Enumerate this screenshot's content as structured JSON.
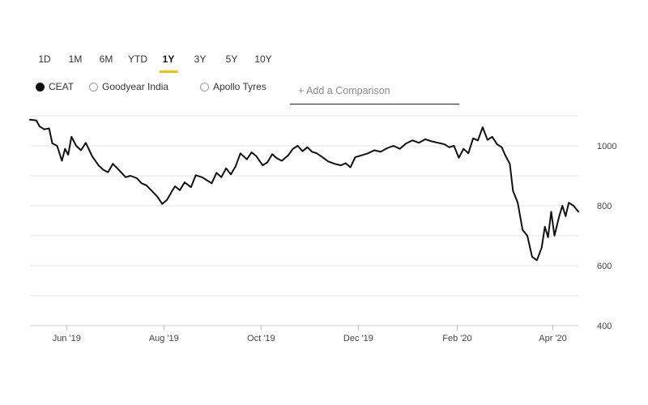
{
  "range_tabs": [
    {
      "label": "1D",
      "active": false
    },
    {
      "label": "1M",
      "active": false
    },
    {
      "label": "6M",
      "active": false
    },
    {
      "label": "YTD",
      "active": false
    },
    {
      "label": "1Y",
      "active": true
    },
    {
      "label": "3Y",
      "active": false
    },
    {
      "label": "5Y",
      "active": false
    },
    {
      "label": "10Y",
      "active": false
    }
  ],
  "legend": [
    {
      "label": "CEAT",
      "selected": true
    },
    {
      "label": "Goodyear India",
      "selected": false
    },
    {
      "label": "Apollo Tyres",
      "selected": false
    }
  ],
  "comparison": {
    "placeholder": "+ Add a Comparison"
  },
  "colors": {
    "accent": "#f2c200",
    "line": "#111111",
    "grid": "#e6e6e6"
  },
  "chart_data": {
    "type": "line",
    "title": "",
    "xlabel": "",
    "ylabel": "",
    "ylim": [
      400,
      1100
    ],
    "y_ticks": [
      1000,
      800,
      600,
      400
    ],
    "grid": true,
    "x_range": [
      "2019-05-09",
      "2020-04-17"
    ],
    "x_ticks": [
      {
        "date": "2019-06-01",
        "label": "Jun '19"
      },
      {
        "date": "2019-08-01",
        "label": "Aug '19"
      },
      {
        "date": "2019-10-01",
        "label": "Oct '19"
      },
      {
        "date": "2019-12-01",
        "label": "Dec '19"
      },
      {
        "date": "2020-02-01",
        "label": "Feb '20"
      },
      {
        "date": "2020-04-01",
        "label": "Apr '20"
      }
    ],
    "series": [
      {
        "name": "CEAT",
        "points": [
          [
            "2019-05-09",
            1087
          ],
          [
            "2019-05-13",
            1085
          ],
          [
            "2019-05-15",
            1065
          ],
          [
            "2019-05-18",
            1055
          ],
          [
            "2019-05-21",
            1058
          ],
          [
            "2019-05-23",
            1008
          ],
          [
            "2019-05-26",
            1000
          ],
          [
            "2019-05-29",
            950
          ],
          [
            "2019-05-31",
            990
          ],
          [
            "2019-06-02",
            970
          ],
          [
            "2019-06-04",
            1030
          ],
          [
            "2019-06-07",
            1000
          ],
          [
            "2019-06-10",
            985
          ],
          [
            "2019-06-13",
            1010
          ],
          [
            "2019-06-17",
            965
          ],
          [
            "2019-06-21",
            935
          ],
          [
            "2019-06-24",
            920
          ],
          [
            "2019-06-27",
            912
          ],
          [
            "2019-06-30",
            940
          ],
          [
            "2019-07-04",
            918
          ],
          [
            "2019-07-08",
            895
          ],
          [
            "2019-07-11",
            900
          ],
          [
            "2019-07-15",
            892
          ],
          [
            "2019-07-18",
            875
          ],
          [
            "2019-07-21",
            868
          ],
          [
            "2019-07-24",
            852
          ],
          [
            "2019-07-28",
            830
          ],
          [
            "2019-07-31",
            806
          ],
          [
            "2019-08-03",
            820
          ],
          [
            "2019-08-06",
            848
          ],
          [
            "2019-08-08",
            865
          ],
          [
            "2019-08-11",
            852
          ],
          [
            "2019-08-14",
            878
          ],
          [
            "2019-08-18",
            862
          ],
          [
            "2019-08-21",
            902
          ],
          [
            "2019-08-25",
            895
          ],
          [
            "2019-08-28",
            885
          ],
          [
            "2019-08-31",
            875
          ],
          [
            "2019-09-03",
            910
          ],
          [
            "2019-09-06",
            895
          ],
          [
            "2019-09-09",
            925
          ],
          [
            "2019-09-12",
            905
          ],
          [
            "2019-09-15",
            932
          ],
          [
            "2019-09-18",
            975
          ],
          [
            "2019-09-22",
            955
          ],
          [
            "2019-09-25",
            978
          ],
          [
            "2019-09-28",
            965
          ],
          [
            "2019-10-02",
            935
          ],
          [
            "2019-10-05",
            945
          ],
          [
            "2019-10-08",
            972
          ],
          [
            "2019-10-11",
            958
          ],
          [
            "2019-10-14",
            950
          ],
          [
            "2019-10-18",
            968
          ],
          [
            "2019-10-21",
            990
          ],
          [
            "2019-10-24",
            1000
          ],
          [
            "2019-10-27",
            982
          ],
          [
            "2019-10-30",
            995
          ],
          [
            "2019-11-02",
            980
          ],
          [
            "2019-11-05",
            975
          ],
          [
            "2019-11-09",
            960
          ],
          [
            "2019-11-12",
            948
          ],
          [
            "2019-11-16",
            940
          ],
          [
            "2019-11-20",
            935
          ],
          [
            "2019-11-23",
            942
          ],
          [
            "2019-11-26",
            928
          ],
          [
            "2019-11-29",
            962
          ],
          [
            "2019-12-03",
            968
          ],
          [
            "2019-12-07",
            975
          ],
          [
            "2019-12-11",
            985
          ],
          [
            "2019-12-15",
            980
          ],
          [
            "2019-12-19",
            992
          ],
          [
            "2019-12-23",
            1000
          ],
          [
            "2019-12-27",
            990
          ],
          [
            "2019-12-31",
            1008
          ],
          [
            "2020-01-04",
            1018
          ],
          [
            "2020-01-08",
            1010
          ],
          [
            "2020-01-12",
            1022
          ],
          [
            "2020-01-16",
            1015
          ],
          [
            "2020-01-20",
            1010
          ],
          [
            "2020-01-24",
            1005
          ],
          [
            "2020-01-27",
            995
          ],
          [
            "2020-01-30",
            1000
          ],
          [
            "2020-02-02",
            960
          ],
          [
            "2020-02-05",
            990
          ],
          [
            "2020-02-08",
            975
          ],
          [
            "2020-02-11",
            1025
          ],
          [
            "2020-02-14",
            1018
          ],
          [
            "2020-02-17",
            1062
          ],
          [
            "2020-02-20",
            1020
          ],
          [
            "2020-02-23",
            1030
          ],
          [
            "2020-02-26",
            1005
          ],
          [
            "2020-02-29",
            995
          ],
          [
            "2020-03-02",
            970
          ],
          [
            "2020-03-05",
            940
          ],
          [
            "2020-03-07",
            850
          ],
          [
            "2020-03-10",
            810
          ],
          [
            "2020-03-13",
            720
          ],
          [
            "2020-03-16",
            700
          ],
          [
            "2020-03-19",
            630
          ],
          [
            "2020-03-22",
            618
          ],
          [
            "2020-03-25",
            660
          ],
          [
            "2020-03-27",
            730
          ],
          [
            "2020-03-29",
            695
          ],
          [
            "2020-03-31",
            780
          ],
          [
            "2020-04-02",
            700
          ],
          [
            "2020-04-05",
            765
          ],
          [
            "2020-04-07",
            800
          ],
          [
            "2020-04-09",
            765
          ],
          [
            "2020-04-11",
            810
          ],
          [
            "2020-04-14",
            800
          ],
          [
            "2020-04-17",
            780
          ]
        ]
      }
    ]
  }
}
